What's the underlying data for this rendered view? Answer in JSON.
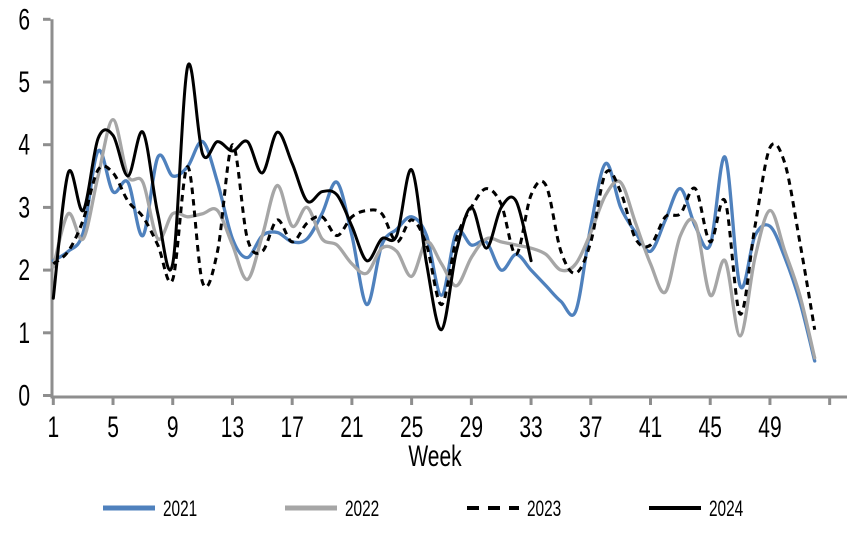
{
  "chart_data": {
    "type": "line",
    "title": "",
    "xlabel": "Week",
    "ylabel": "",
    "smoothed_lines": true,
    "grid": false,
    "legend_position": "bottom",
    "axis_color": "#8E8E8E",
    "text_color": "#000000",
    "xlim": [
      1,
      53
    ],
    "ylim": [
      0,
      6
    ],
    "y_ticks": [
      0,
      1,
      2,
      3,
      4,
      5,
      6
    ],
    "x_tick_labels": [
      1,
      5,
      9,
      13,
      17,
      21,
      25,
      29,
      33,
      37,
      41,
      45,
      49
    ],
    "unlabeled_end_tick_week": 53,
    "x_unit": "week_number",
    "x_start": 1,
    "series": [
      {
        "name": "2021",
        "color": "#4F81BD",
        "dash": "solid",
        "values": [
          2.15,
          2.3,
          2.6,
          3.9,
          3.25,
          3.4,
          2.55,
          3.8,
          3.5,
          3.65,
          4.05,
          3.4,
          2.5,
          2.2,
          2.55,
          2.6,
          2.45,
          2.5,
          2.9,
          3.4,
          2.55,
          1.45,
          2.4,
          2.65,
          2.85,
          2.55,
          1.6,
          2.6,
          2.4,
          2.45,
          2.0,
          2.25,
          2.0,
          1.75,
          1.5,
          1.35,
          2.7,
          3.7,
          3.0,
          2.6,
          2.3,
          2.8,
          3.3,
          2.7,
          2.4,
          3.8,
          1.75,
          2.55,
          2.7,
          2.2,
          1.5,
          0.55
        ]
      },
      {
        "name": "2022",
        "color": "#A6A6A6",
        "dash": "solid",
        "values": [
          2.05,
          2.9,
          2.5,
          3.5,
          4.4,
          3.5,
          3.4,
          2.5,
          2.9,
          2.85,
          2.9,
          2.95,
          2.4,
          1.85,
          2.55,
          3.35,
          2.7,
          3.0,
          2.5,
          2.4,
          2.1,
          1.95,
          2.35,
          2.3,
          1.9,
          2.45,
          2.1,
          1.75,
          2.2,
          2.5,
          2.45,
          2.4,
          2.35,
          2.25,
          2.0,
          2.1,
          2.6,
          3.2,
          3.4,
          2.75,
          2.1,
          1.65,
          2.55,
          2.75,
          1.6,
          2.15,
          0.95,
          2.2,
          2.95,
          2.3,
          1.6,
          0.6
        ]
      },
      {
        "name": "2023",
        "color": "#000000",
        "dash": "dashed",
        "values": [
          2.1,
          2.3,
          2.8,
          3.6,
          3.55,
          3.1,
          2.85,
          2.4,
          1.85,
          3.65,
          1.8,
          2.3,
          4.0,
          2.5,
          2.3,
          2.8,
          2.45,
          2.75,
          2.85,
          2.55,
          2.85,
          2.95,
          2.9,
          2.45,
          2.8,
          2.4,
          1.45,
          2.5,
          3.0,
          3.3,
          3.05,
          2.25,
          3.2,
          3.35,
          2.3,
          1.95,
          2.45,
          3.55,
          3.25,
          2.5,
          2.4,
          2.85,
          2.9,
          3.3,
          2.45,
          3.1,
          1.3,
          2.7,
          3.95,
          3.7,
          2.45,
          1.05
        ]
      },
      {
        "name": "2024",
        "color": "#000000",
        "dash": "solid",
        "values": [
          1.55,
          3.55,
          2.95,
          4.1,
          4.15,
          3.5,
          4.2,
          2.9,
          2.1,
          5.25,
          3.85,
          4.05,
          3.9,
          4.05,
          3.55,
          4.2,
          3.7,
          3.1,
          3.25,
          3.2,
          2.7,
          2.15,
          2.5,
          2.55,
          3.6,
          2.1,
          1.05,
          2.3,
          3.0,
          2.35,
          3.0,
          3.1,
          2.15
        ]
      }
    ]
  }
}
